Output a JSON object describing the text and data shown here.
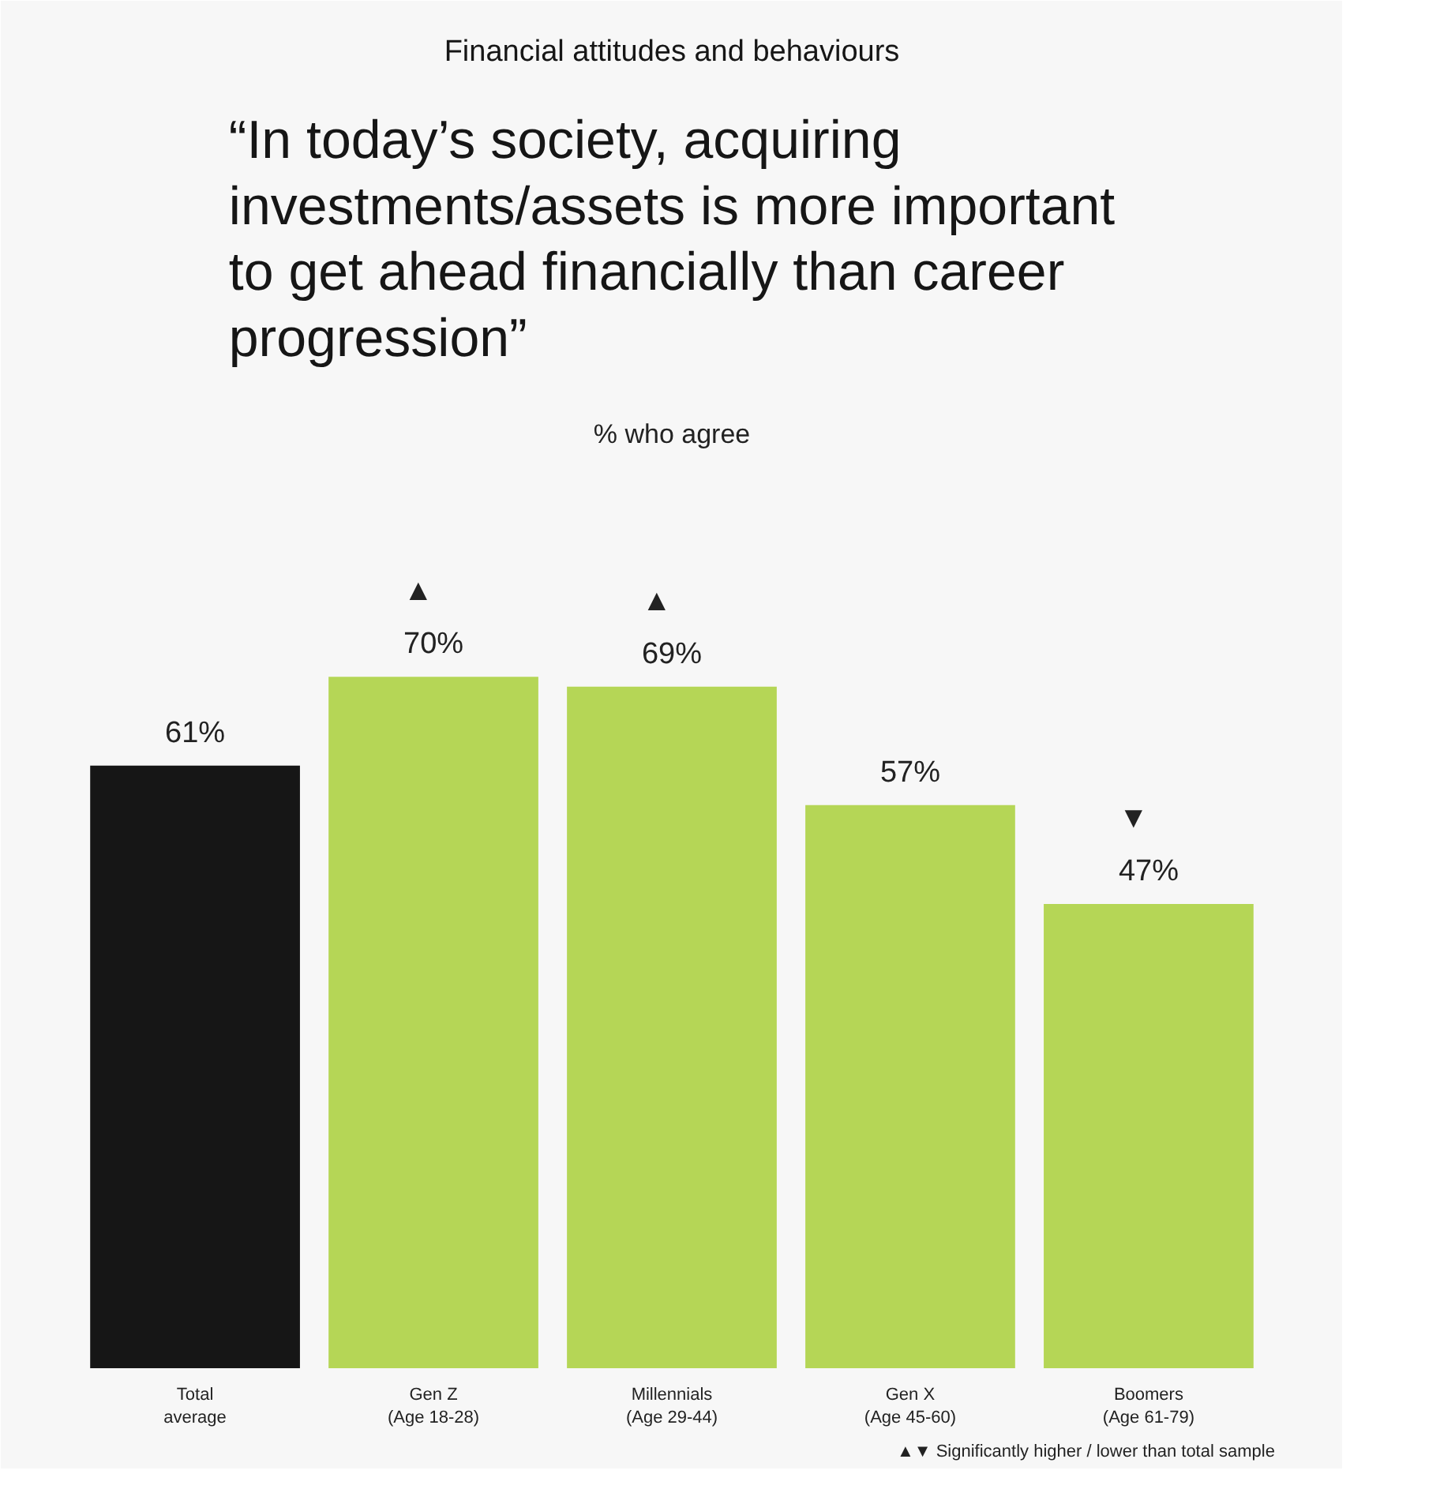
{
  "chart_data": {
    "type": "bar",
    "title": "“In today’s society, acquiring investments/assets is more important to get ahead financially than career progression”",
    "subtitle": "% who agree",
    "categories": [
      "Total\naverage",
      "Gen Z\n(Age 18-28)",
      "Millennials\n(Age 29-44)",
      "Gen X\n(Age 45-60)",
      "Boomers\n(Age 61-79)"
    ],
    "values": [
      61,
      70,
      69,
      57,
      47
    ],
    "colors": [
      "#161616",
      "#b5d656",
      "#b5d656",
      "#b5d656",
      "#b5d656"
    ],
    "value_labels": [
      "61%",
      "▲\n70%",
      "▲\n69%",
      "57%",
      "▼\n47%"
    ],
    "grid": false,
    "annotations": [
      "Financial attitudes and behaviours",
      "▲▼  Significantly higher / lower than total sample"
    ]
  }
}
